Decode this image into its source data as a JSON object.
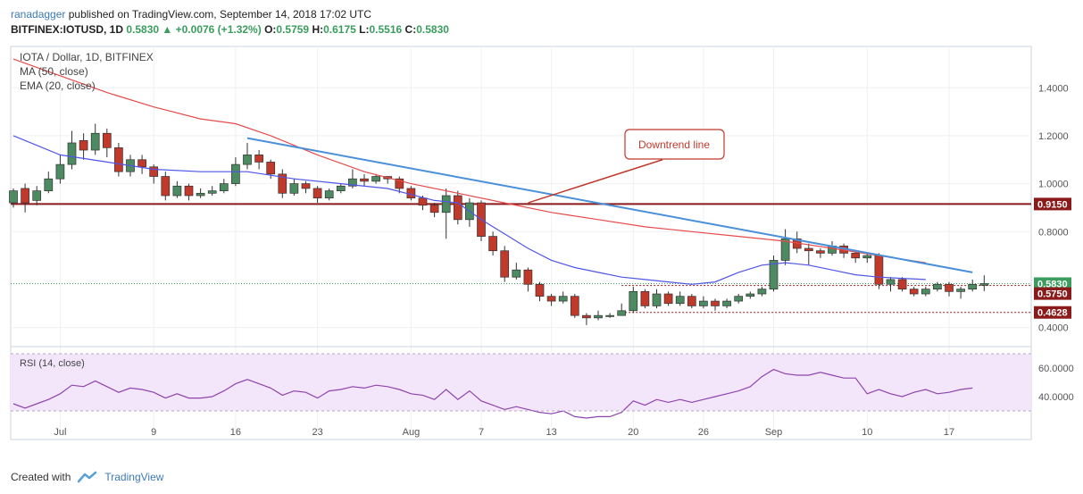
{
  "header": {
    "author": "ranadagger",
    "published_text": "published on TradingView.com, September 14, 2018 17:02 UTC",
    "symbol": "BITFINEX:IOTUSD, 1D",
    "last": "0.5830",
    "change": "+0.0076 (+1.32%)",
    "open_label": "O:",
    "open": "0.5759",
    "high_label": "H:",
    "high": "0.6175",
    "low_label": "L:",
    "low": "0.5516",
    "close_label": "C:",
    "close": "0.5830"
  },
  "legend": {
    "title": "IOTA / Dollar, 1D, BITFINEX",
    "ma": "MA (50, close)",
    "ema": "EMA (20, close)",
    "rsi": "RSI (14, close)"
  },
  "annotation": {
    "text": "Downtrend line"
  },
  "footer": {
    "created_with": "Created with",
    "brand": "TradingView"
  },
  "colors": {
    "up": "#4c8a62",
    "down": "#c0392b",
    "ma": "#e54b4b",
    "ema": "#4f55e8",
    "trend": "#4a8fd9",
    "support": "#8b1a1a",
    "rsi": "#8e44ad",
    "rsi_band": "#f3e6fb"
  },
  "chart_data": {
    "type": "candlestick",
    "price_axis": {
      "min": 0.35,
      "max": 1.55,
      "ticks": [
        "1.4000",
        "1.2000",
        "1.0000",
        "0.8000",
        "0.4000"
      ]
    },
    "price_labels": [
      {
        "value": 0.915,
        "text": "0.9150",
        "color": "#8b1a1a"
      },
      {
        "value": 0.583,
        "text": "0.5830",
        "color": "#3a9d5d"
      },
      {
        "value": 0.575,
        "text": "0.5750",
        "color": "#8b1a1a"
      },
      {
        "value": 0.4628,
        "text": "0.4628",
        "color": "#8b1a1a"
      }
    ],
    "x_ticks": [
      {
        "i": 4,
        "label": "Jul"
      },
      {
        "i": 12,
        "label": "9"
      },
      {
        "i": 19,
        "label": "16"
      },
      {
        "i": 26,
        "label": "23"
      },
      {
        "i": 34,
        "label": "Aug"
      },
      {
        "i": 40,
        "label": "7"
      },
      {
        "i": 46,
        "label": "13"
      },
      {
        "i": 53,
        "label": "20"
      },
      {
        "i": 59,
        "label": "26"
      },
      {
        "i": 65,
        "label": "Sep"
      },
      {
        "i": 73,
        "label": "10"
      },
      {
        "i": 80,
        "label": "17"
      }
    ],
    "candles": [
      [
        0.92,
        0.97,
        0.98,
        0.9
      ],
      [
        0.98,
        0.92,
        1.0,
        0.88
      ],
      [
        0.93,
        0.97,
        0.99,
        0.91
      ],
      [
        0.97,
        1.02,
        1.05,
        0.96
      ],
      [
        1.02,
        1.08,
        1.12,
        1.0
      ],
      [
        1.08,
        1.17,
        1.22,
        1.06
      ],
      [
        1.18,
        1.14,
        1.21,
        1.1
      ],
      [
        1.14,
        1.21,
        1.25,
        1.12
      ],
      [
        1.21,
        1.15,
        1.23,
        1.11
      ],
      [
        1.15,
        1.05,
        1.17,
        1.03
      ],
      [
        1.05,
        1.1,
        1.12,
        1.03
      ],
      [
        1.1,
        1.07,
        1.12,
        1.04
      ],
      [
        1.07,
        1.03,
        1.08,
        1.0
      ],
      [
        1.03,
        0.95,
        1.05,
        0.93
      ],
      [
        0.95,
        0.99,
        1.01,
        0.94
      ],
      [
        0.99,
        0.95,
        1.0,
        0.93
      ],
      [
        0.95,
        0.96,
        0.98,
        0.94
      ],
      [
        0.96,
        0.97,
        0.99,
        0.95
      ],
      [
        0.97,
        1.0,
        1.02,
        0.96
      ],
      [
        1.0,
        1.08,
        1.11,
        0.99
      ],
      [
        1.08,
        1.12,
        1.17,
        1.06
      ],
      [
        1.12,
        1.09,
        1.14,
        1.06
      ],
      [
        1.09,
        1.04,
        1.1,
        1.02
      ],
      [
        1.04,
        0.96,
        1.06,
        0.94
      ],
      [
        0.96,
        1.0,
        1.02,
        0.95
      ],
      [
        1.0,
        0.98,
        1.01,
        0.96
      ],
      [
        0.98,
        0.94,
        0.99,
        0.92
      ],
      [
        0.94,
        0.97,
        0.98,
        0.93
      ],
      [
        0.97,
        0.99,
        1.0,
        0.96
      ],
      [
        0.99,
        1.02,
        1.06,
        0.98
      ],
      [
        1.02,
        1.01,
        1.04,
        0.99
      ],
      [
        1.01,
        1.03,
        1.04,
        1.0
      ],
      [
        1.03,
        1.02,
        1.03,
        1.0
      ],
      [
        1.02,
        0.98,
        1.03,
        0.96
      ],
      [
        0.98,
        0.94,
        0.99,
        0.93
      ],
      [
        0.94,
        0.91,
        0.95,
        0.89
      ],
      [
        0.91,
        0.88,
        0.92,
        0.86
      ],
      [
        0.88,
        0.95,
        0.98,
        0.77
      ],
      [
        0.95,
        0.85,
        0.97,
        0.83
      ],
      [
        0.85,
        0.92,
        0.94,
        0.82
      ],
      [
        0.92,
        0.78,
        0.93,
        0.76
      ],
      [
        0.78,
        0.72,
        0.8,
        0.7
      ],
      [
        0.72,
        0.61,
        0.74,
        0.59
      ],
      [
        0.61,
        0.64,
        0.67,
        0.6
      ],
      [
        0.64,
        0.58,
        0.65,
        0.55
      ],
      [
        0.58,
        0.53,
        0.59,
        0.51
      ],
      [
        0.53,
        0.51,
        0.54,
        0.49
      ],
      [
        0.51,
        0.53,
        0.55,
        0.5
      ],
      [
        0.53,
        0.45,
        0.54,
        0.44
      ],
      [
        0.45,
        0.44,
        0.46,
        0.41
      ],
      [
        0.44,
        0.45,
        0.47,
        0.43
      ],
      [
        0.45,
        0.45,
        0.46,
        0.44
      ],
      [
        0.45,
        0.47,
        0.5,
        0.45
      ],
      [
        0.47,
        0.55,
        0.57,
        0.46
      ],
      [
        0.55,
        0.49,
        0.56,
        0.48
      ],
      [
        0.49,
        0.54,
        0.56,
        0.48
      ],
      [
        0.54,
        0.5,
        0.55,
        0.49
      ],
      [
        0.5,
        0.53,
        0.55,
        0.49
      ],
      [
        0.53,
        0.49,
        0.54,
        0.48
      ],
      [
        0.49,
        0.51,
        0.53,
        0.48
      ],
      [
        0.51,
        0.49,
        0.52,
        0.47
      ],
      [
        0.49,
        0.51,
        0.52,
        0.48
      ],
      [
        0.51,
        0.53,
        0.54,
        0.5
      ],
      [
        0.53,
        0.54,
        0.55,
        0.52
      ],
      [
        0.54,
        0.56,
        0.57,
        0.53
      ],
      [
        0.56,
        0.68,
        0.7,
        0.55
      ],
      [
        0.68,
        0.77,
        0.81,
        0.66
      ],
      [
        0.77,
        0.73,
        0.8,
        0.71
      ],
      [
        0.73,
        0.72,
        0.75,
        0.66
      ],
      [
        0.72,
        0.71,
        0.73,
        0.69
      ],
      [
        0.71,
        0.74,
        0.76,
        0.7
      ],
      [
        0.74,
        0.71,
        0.75,
        0.69
      ],
      [
        0.71,
        0.69,
        0.72,
        0.67
      ],
      [
        0.69,
        0.7,
        0.71,
        0.67
      ],
      [
        0.7,
        0.58,
        0.71,
        0.56
      ],
      [
        0.58,
        0.6,
        0.61,
        0.55
      ],
      [
        0.6,
        0.56,
        0.61,
        0.55
      ],
      [
        0.56,
        0.54,
        0.57,
        0.53
      ],
      [
        0.54,
        0.56,
        0.57,
        0.53
      ],
      [
        0.56,
        0.58,
        0.59,
        0.55
      ],
      [
        0.58,
        0.55,
        0.59,
        0.53
      ],
      [
        0.55,
        0.56,
        0.57,
        0.52
      ],
      [
        0.56,
        0.58,
        0.6,
        0.55
      ],
      [
        0.576,
        0.583,
        0.6175,
        0.5516
      ]
    ],
    "ma50": [
      [
        0,
        1.52
      ],
      [
        4,
        1.45
      ],
      [
        8,
        1.38
      ],
      [
        12,
        1.32
      ],
      [
        16,
        1.27
      ],
      [
        19,
        1.25
      ],
      [
        22,
        1.2
      ],
      [
        26,
        1.12
      ],
      [
        30,
        1.05
      ],
      [
        34,
        1.0
      ],
      [
        38,
        0.96
      ],
      [
        42,
        0.92
      ],
      [
        46,
        0.88
      ],
      [
        50,
        0.85
      ],
      [
        54,
        0.82
      ],
      [
        58,
        0.8
      ],
      [
        62,
        0.78
      ],
      [
        66,
        0.76
      ],
      [
        70,
        0.73
      ],
      [
        74,
        0.7
      ],
      [
        78,
        0.67
      ]
    ],
    "ema20": [
      [
        0,
        1.2
      ],
      [
        4,
        1.12
      ],
      [
        8,
        1.09
      ],
      [
        12,
        1.06
      ],
      [
        16,
        1.05
      ],
      [
        20,
        1.05
      ],
      [
        24,
        1.02
      ],
      [
        28,
        1.0
      ],
      [
        32,
        0.98
      ],
      [
        36,
        0.93
      ],
      [
        38,
        0.92
      ],
      [
        40,
        0.85
      ],
      [
        42,
        0.79
      ],
      [
        44,
        0.73
      ],
      [
        46,
        0.68
      ],
      [
        48,
        0.65
      ],
      [
        50,
        0.63
      ],
      [
        52,
        0.61
      ],
      [
        54,
        0.6
      ],
      [
        56,
        0.59
      ],
      [
        58,
        0.58
      ],
      [
        60,
        0.59
      ],
      [
        62,
        0.63
      ],
      [
        64,
        0.66
      ],
      [
        66,
        0.67
      ],
      [
        68,
        0.66
      ],
      [
        70,
        0.64
      ],
      [
        72,
        0.62
      ],
      [
        74,
        0.61
      ],
      [
        76,
        0.605
      ],
      [
        78,
        0.6
      ]
    ],
    "trendline": [
      [
        20,
        1.19
      ],
      [
        82,
        0.63
      ]
    ],
    "annotation_arrow": [
      [
        44,
        0.92
      ],
      [
        55.5,
        1.1
      ]
    ],
    "support_levels": [
      0.915,
      0.4628
    ],
    "rsi": {
      "ticks": [
        "60.0000",
        "40.0000"
      ],
      "band": [
        30,
        70
      ],
      "values": [
        [
          0,
          35
        ],
        [
          1,
          32
        ],
        [
          2,
          35
        ],
        [
          3,
          38
        ],
        [
          4,
          42
        ],
        [
          5,
          48
        ],
        [
          6,
          47
        ],
        [
          7,
          51
        ],
        [
          8,
          47
        ],
        [
          9,
          43
        ],
        [
          10,
          46
        ],
        [
          11,
          45
        ],
        [
          12,
          43
        ],
        [
          13,
          39
        ],
        [
          14,
          42
        ],
        [
          15,
          39
        ],
        [
          16,
          39
        ],
        [
          17,
          40
        ],
        [
          18,
          44
        ],
        [
          19,
          49
        ],
        [
          20,
          52
        ],
        [
          21,
          49
        ],
        [
          22,
          46
        ],
        [
          23,
          41
        ],
        [
          24,
          44
        ],
        [
          25,
          43
        ],
        [
          26,
          39
        ],
        [
          27,
          44
        ],
        [
          28,
          45
        ],
        [
          29,
          47
        ],
        [
          30,
          46
        ],
        [
          31,
          48
        ],
        [
          32,
          47
        ],
        [
          33,
          45
        ],
        [
          34,
          42
        ],
        [
          35,
          41
        ],
        [
          36,
          38
        ],
        [
          37,
          45
        ],
        [
          38,
          38
        ],
        [
          39,
          44
        ],
        [
          40,
          37
        ],
        [
          41,
          34
        ],
        [
          42,
          31
        ],
        [
          43,
          33
        ],
        [
          44,
          31
        ],
        [
          45,
          29
        ],
        [
          46,
          28
        ],
        [
          47,
          30
        ],
        [
          48,
          26
        ],
        [
          49,
          25
        ],
        [
          50,
          26
        ],
        [
          51,
          26
        ],
        [
          52,
          29
        ],
        [
          53,
          37
        ],
        [
          54,
          34
        ],
        [
          55,
          38
        ],
        [
          56,
          36
        ],
        [
          57,
          38
        ],
        [
          58,
          36
        ],
        [
          59,
          38
        ],
        [
          60,
          40
        ],
        [
          61,
          42
        ],
        [
          62,
          44
        ],
        [
          63,
          47
        ],
        [
          64,
          54
        ],
        [
          65,
          59
        ],
        [
          66,
          56
        ],
        [
          67,
          55
        ],
        [
          68,
          55
        ],
        [
          69,
          57
        ],
        [
          70,
          55
        ],
        [
          71,
          53
        ],
        [
          72,
          53
        ],
        [
          73,
          42
        ],
        [
          74,
          45
        ],
        [
          75,
          42
        ],
        [
          76,
          40
        ],
        [
          77,
          43
        ],
        [
          78,
          45
        ],
        [
          79,
          42
        ],
        [
          80,
          43
        ],
        [
          81,
          45
        ],
        [
          82,
          46
        ]
      ]
    }
  }
}
